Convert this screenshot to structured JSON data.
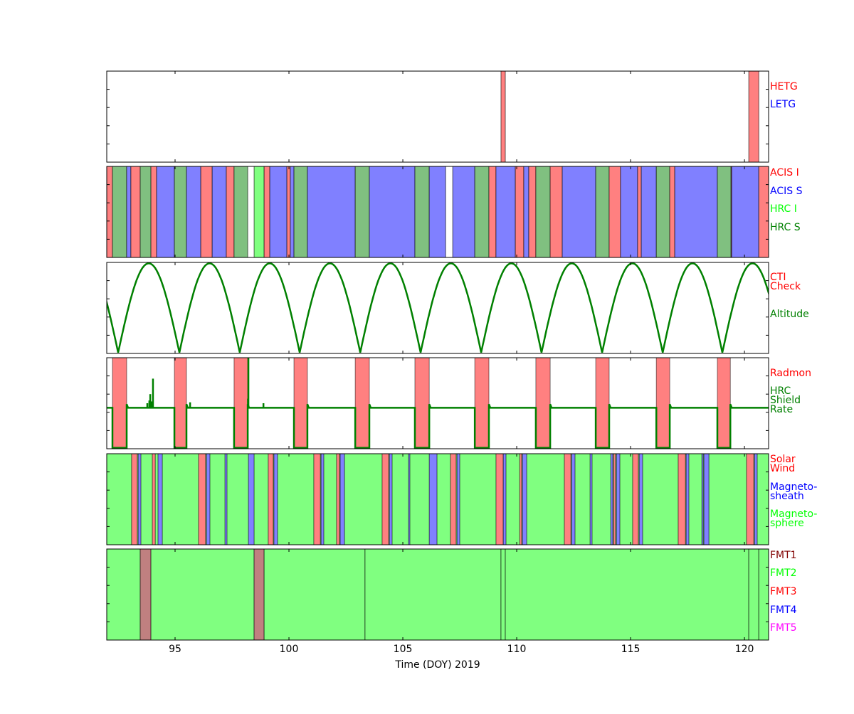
{
  "chart_data": [
    {
      "type": "bar",
      "panel": "grating",
      "labels": [
        {
          "text": "HETG",
          "color": "#ff0000"
        },
        {
          "text": "LETG",
          "color": "#0000ff"
        }
      ],
      "categories": {
        "HETG": "#ff8080",
        "LETG": "#8080ff"
      },
      "segments": [
        [
          109.31,
          109.5,
          "HETG"
        ],
        [
          120.19,
          120.63,
          "HETG"
        ]
      ]
    },
    {
      "type": "bar",
      "panel": "instrument",
      "labels": [
        {
          "text": "ACIS I",
          "color": "#ff0000"
        },
        {
          "text": "ACIS S",
          "color": "#0000ff"
        },
        {
          "text": "HRC I",
          "color": "#00ff00"
        },
        {
          "text": "HRC S",
          "color": "#008000"
        }
      ],
      "categories": {
        "ACIS I": "#ff8080",
        "ACIS S": "#8080ff",
        "HRC I": "#80ff80",
        "HRC S": "#80c080"
      },
      "segments": [
        [
          92.0,
          92.25,
          "ACIS I"
        ],
        [
          92.25,
          92.875,
          "HRC S"
        ],
        [
          92.875,
          93.06,
          "ACIS S"
        ],
        [
          93.06,
          93.47,
          "ACIS I"
        ],
        [
          93.47,
          93.94,
          "HRC S"
        ],
        [
          93.94,
          94.19,
          "ACIS I"
        ],
        [
          94.19,
          94.97,
          "ACIS S"
        ],
        [
          94.97,
          95.5,
          "HRC S"
        ],
        [
          95.5,
          96.13,
          "ACIS S"
        ],
        [
          96.13,
          96.63,
          "ACIS I"
        ],
        [
          96.63,
          97.25,
          "ACIS S"
        ],
        [
          97.25,
          97.59,
          "ACIS I"
        ],
        [
          97.59,
          98.19,
          "HRC S"
        ],
        [
          98.47,
          98.91,
          "HRC I"
        ],
        [
          98.91,
          99.16,
          "ACIS I"
        ],
        [
          99.16,
          99.91,
          "ACIS S"
        ],
        [
          99.91,
          100.06,
          "ACIS I"
        ],
        [
          100.06,
          100.22,
          "ACIS S"
        ],
        [
          100.22,
          100.81,
          "HRC S"
        ],
        [
          100.81,
          102.91,
          "ACIS S"
        ],
        [
          102.91,
          103.53,
          "HRC S"
        ],
        [
          103.53,
          105.53,
          "ACIS S"
        ],
        [
          105.53,
          106.16,
          "HRC S"
        ],
        [
          106.16,
          106.88,
          "ACIS S"
        ],
        [
          107.19,
          108.16,
          "ACIS S"
        ],
        [
          108.16,
          108.78,
          "HRC S"
        ],
        [
          108.78,
          109.09,
          "ACIS I"
        ],
        [
          109.09,
          109.94,
          "ACIS S"
        ],
        [
          109.94,
          110.31,
          "ACIS I"
        ],
        [
          110.31,
          110.53,
          "ACIS S"
        ],
        [
          110.53,
          110.84,
          "ACIS I"
        ],
        [
          110.84,
          111.47,
          "HRC S"
        ],
        [
          111.47,
          112.0,
          "ACIS I"
        ],
        [
          112.0,
          113.47,
          "ACIS S"
        ],
        [
          113.47,
          114.06,
          "HRC S"
        ],
        [
          114.06,
          114.56,
          "ACIS I"
        ],
        [
          114.56,
          115.31,
          "ACIS S"
        ],
        [
          115.31,
          115.47,
          "ACIS I"
        ],
        [
          115.47,
          116.13,
          "ACIS S"
        ],
        [
          116.13,
          116.72,
          "HRC S"
        ],
        [
          116.72,
          116.94,
          "ACIS I"
        ],
        [
          116.94,
          118.81,
          "ACIS S"
        ],
        [
          118.81,
          119.41,
          "HRC S"
        ],
        [
          119.41,
          119.44,
          "ACIS I"
        ],
        [
          119.44,
          120.63,
          "ACIS S"
        ],
        [
          120.63,
          121.06,
          "ACIS I"
        ]
      ]
    },
    {
      "type": "line",
      "panel": "altitude",
      "labels": [
        {
          "text": "CTI",
          "color": "#ff0000"
        },
        {
          "text": "Check",
          "color": "#ff0000"
        },
        {
          "text": "Altitude",
          "color": "#008000"
        }
      ],
      "line_color": "#008000",
      "perigee_times": [
        89.85,
        92.5,
        95.19,
        97.84,
        100.47,
        103.13,
        105.78,
        108.44,
        111.09,
        113.75,
        116.41,
        119.03,
        121.68
      ],
      "ylim": [
        0,
        1
      ]
    },
    {
      "type": "line",
      "panel": "radiation",
      "labels": [
        {
          "text": "Radmon",
          "color": "#ff0000"
        },
        {
          "text": "HRC",
          "color": "#008000"
        },
        {
          "text": "Shield",
          "color": "#008000"
        },
        {
          "text": "Rate",
          "color": "#008000"
        }
      ],
      "radmon_color": "#ff8080",
      "line_color": "#008000",
      "radmon_off": [
        [
          92.25,
          92.875
        ],
        [
          94.97,
          95.5
        ],
        [
          97.59,
          98.19
        ],
        [
          100.22,
          100.81
        ],
        [
          102.91,
          103.53
        ],
        [
          105.53,
          106.16
        ],
        [
          108.16,
          108.78
        ],
        [
          110.84,
          111.47
        ],
        [
          113.47,
          114.06
        ],
        [
          116.13,
          116.72
        ],
        [
          118.81,
          119.38
        ]
      ],
      "baseline": 0.45,
      "spikes": [
        [
          93.78,
          0.5
        ],
        [
          93.87,
          0.53
        ],
        [
          93.91,
          0.6
        ],
        [
          93.97,
          0.52
        ],
        [
          94.03,
          0.77
        ],
        [
          95.66,
          0.51
        ],
        [
          98.2,
          0.55
        ],
        [
          98.22,
          1.0
        ],
        [
          98.88,
          0.5
        ]
      ],
      "ylim": [
        0,
        1
      ]
    },
    {
      "type": "bar",
      "panel": "environment",
      "labels": [
        {
          "text": "Solar",
          "color": "#ff0000"
        },
        {
          "text": "Wind",
          "color": "#ff0000"
        },
        {
          "text": "Magneto-",
          "color": "#0000ff"
        },
        {
          "text": "sheath",
          "color": "#0000ff"
        },
        {
          "text": "Magneto-",
          "color": "#00ff00"
        },
        {
          "text": "sphere",
          "color": "#00ff00"
        }
      ],
      "categories": {
        "Solar Wind": "#ff8080",
        "Magnetosheath": "#8080ff",
        "Magnetosphere": "#80ff80"
      },
      "background": "Magnetosphere",
      "segments": [
        [
          93.09,
          93.34,
          "Solar Wind"
        ],
        [
          93.38,
          93.5,
          "Magnetosheath"
        ],
        [
          94.0,
          94.13,
          "Solar Wind"
        ],
        [
          94.25,
          94.44,
          "Magnetosheath"
        ],
        [
          96.03,
          96.34,
          "Solar Wind"
        ],
        [
          96.38,
          96.53,
          "Magnetosheath"
        ],
        [
          97.19,
          97.28,
          "Magnetosheath"
        ],
        [
          98.22,
          98.47,
          "Magnetosheath"
        ],
        [
          99.09,
          99.31,
          "Solar Wind"
        ],
        [
          99.34,
          99.5,
          "Magnetosheath"
        ],
        [
          101.09,
          101.38,
          "Solar Wind"
        ],
        [
          101.41,
          101.53,
          "Magnetosheath"
        ],
        [
          102.09,
          102.22,
          "Solar Wind"
        ],
        [
          102.25,
          102.44,
          "Magnetosheath"
        ],
        [
          104.09,
          104.38,
          "Solar Wind"
        ],
        [
          104.41,
          104.53,
          "Magnetosheath"
        ],
        [
          105.25,
          105.31,
          "Magnetosheath"
        ],
        [
          106.16,
          106.5,
          "Magnetosheath"
        ],
        [
          107.09,
          107.34,
          "Solar Wind"
        ],
        [
          107.38,
          107.5,
          "Magnetosheath"
        ],
        [
          109.09,
          109.41,
          "Solar Wind"
        ],
        [
          109.41,
          109.53,
          "Magnetosheath"
        ],
        [
          110.13,
          110.22,
          "Solar Wind"
        ],
        [
          110.25,
          110.44,
          "Magnetosheath"
        ],
        [
          112.09,
          112.38,
          "Solar Wind"
        ],
        [
          112.41,
          112.56,
          "Magnetosheath"
        ],
        [
          113.22,
          113.31,
          "Magnetosheath"
        ],
        [
          114.13,
          114.22,
          "Magnetosheath"
        ],
        [
          114.25,
          114.34,
          "Solar Wind"
        ],
        [
          114.38,
          114.53,
          "Magnetosheath"
        ],
        [
          115.09,
          115.34,
          "Solar Wind"
        ],
        [
          115.38,
          115.53,
          "Magnetosheath"
        ],
        [
          117.09,
          117.41,
          "Solar Wind"
        ],
        [
          117.44,
          117.56,
          "Magnetosheath"
        ],
        [
          118.13,
          118.19,
          "Magnetosheath"
        ],
        [
          118.22,
          118.44,
          "Magnetosheath"
        ],
        [
          120.09,
          120.41,
          "Solar Wind"
        ],
        [
          120.44,
          120.56,
          "Magnetosheath"
        ]
      ]
    },
    {
      "type": "bar",
      "panel": "format",
      "labels": [
        {
          "text": "FMT1",
          "color": "#800000"
        },
        {
          "text": "FMT2",
          "color": "#00ff00"
        },
        {
          "text": "FMT3",
          "color": "#ff0000"
        },
        {
          "text": "FMT4",
          "color": "#0000ff"
        },
        {
          "text": "FMT5",
          "color": "#ff00ff"
        }
      ],
      "categories": {
        "FMT1": "#c08080",
        "FMT2": "#80ff80"
      },
      "segments": [
        [
          92.0,
          93.47,
          "FMT2"
        ],
        [
          93.47,
          93.94,
          "FMT1"
        ],
        [
          93.94,
          98.47,
          "FMT2"
        ],
        [
          98.47,
          98.91,
          "FMT1"
        ],
        [
          98.91,
          103.34,
          "FMT2"
        ],
        [
          103.34,
          109.31,
          "FMT2"
        ],
        [
          109.31,
          109.5,
          "FMT2"
        ],
        [
          109.5,
          120.19,
          "FMT2"
        ],
        [
          120.19,
          120.63,
          "FMT2"
        ],
        [
          120.63,
          121.06,
          "FMT2"
        ]
      ]
    }
  ],
  "xaxis": {
    "label": "Time (DOY) 2019",
    "xlim": [
      92.0,
      121.06
    ],
    "ticks": [
      95,
      100,
      105,
      110,
      115,
      120
    ],
    "tick_labels": [
      "95",
      "100",
      "105",
      "110",
      "115",
      "120"
    ]
  }
}
